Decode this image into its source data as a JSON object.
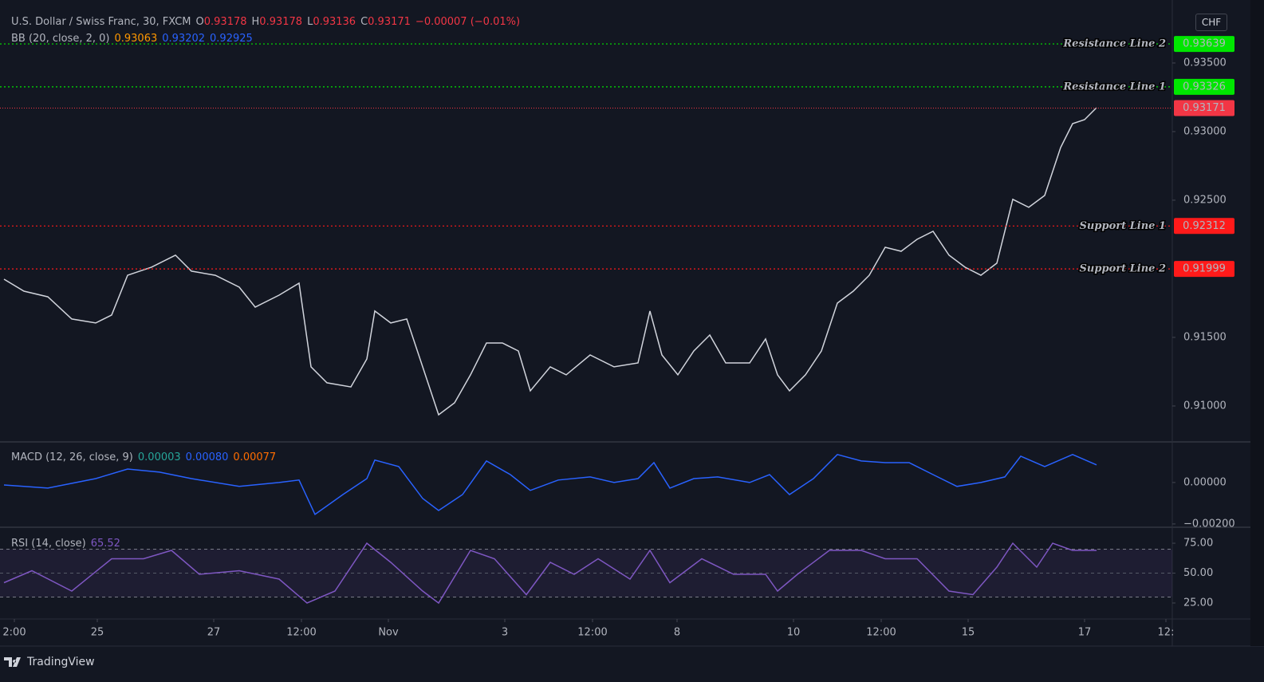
{
  "currency": "CHF",
  "footer": "TradingView",
  "chart_data": [
    {
      "type": "line",
      "title": "U.S. Dollar / Swiss Franc, 30, FXCM",
      "ohlc": [
        {
          "key": "O",
          "text": "0.93178"
        },
        {
          "key": "H",
          "text": "0.93178"
        },
        {
          "key": "L",
          "text": "0.93136"
        },
        {
          "key": "C",
          "text": "0.93171"
        }
      ],
      "change": "−0.00007 (−0.01%)",
      "indicator": "BB (20, close, 2, 0)",
      "indicator_values": [
        {
          "text": "0.93063",
          "color": "#ff9800"
        },
        {
          "text": "0.93202",
          "color": "#2962ff"
        },
        {
          "text": "0.92925",
          "color": "#2962ff"
        }
      ],
      "x": [
        5,
        30,
        60,
        90,
        120,
        140,
        160,
        190,
        220,
        240,
        270,
        300,
        320,
        350,
        375,
        390,
        410,
        440,
        460,
        470,
        490,
        510,
        530,
        550,
        570,
        590,
        610,
        630,
        650,
        665,
        690,
        710,
        740,
        770,
        800,
        815,
        830,
        850,
        870,
        890,
        910,
        940,
        960,
        975,
        990,
        1010,
        1030,
        1050,
        1070,
        1090,
        1110,
        1130,
        1150,
        1170,
        1190,
        1210,
        1230,
        1250,
        1270,
        1290,
        1310,
        1330,
        1345,
        1360,
        1375
      ],
      "series": [
        {
          "color": "#d1d4dc",
          "values": [
            0.91924,
            0.91837,
            0.91796,
            0.91634,
            0.91605,
            0.91663,
            0.91953,
            0.92012,
            0.92099,
            0.91983,
            0.91953,
            0.91866,
            0.91721,
            0.91808,
            0.91895,
            0.91285,
            0.91169,
            0.91139,
            0.91343,
            0.91692,
            0.91605,
            0.91634,
            0.91285,
            0.90936,
            0.91023,
            0.91227,
            0.91459,
            0.91459,
            0.91401,
            0.9111,
            0.91285,
            0.91227,
            0.91372,
            0.91285,
            0.91314,
            0.91692,
            0.91372,
            0.91227,
            0.91401,
            0.91517,
            0.91314,
            0.91314,
            0.91488,
            0.91227,
            0.9111,
            0.91227,
            0.91401,
            0.9175,
            0.91837,
            0.91953,
            0.92157,
            0.92128,
            0.92215,
            0.92273,
            0.92099,
            0.92012,
            0.91953,
            0.92041,
            0.92506,
            0.92448,
            0.92535,
            0.92884,
            0.93058,
            0.93087,
            0.93174
          ]
        }
      ],
      "xlim": [
        0,
        1470
      ],
      "xticks": [
        {
          "value": 18,
          "label": "2:00"
        },
        {
          "value": 122,
          "label": "25"
        },
        {
          "value": 268,
          "label": "27"
        },
        {
          "value": 378,
          "label": "12:00"
        },
        {
          "value": 487,
          "label": "Nov"
        },
        {
          "value": 633,
          "label": "3"
        },
        {
          "value": 743,
          "label": "12:00"
        },
        {
          "value": 849,
          "label": "8"
        },
        {
          "value": 995,
          "label": "10"
        },
        {
          "value": 1105,
          "label": "12:00"
        },
        {
          "value": 1214,
          "label": "15"
        },
        {
          "value": 1360,
          "label": "17"
        },
        {
          "value": 1462,
          "label": "12:"
        }
      ],
      "ylim": [
        0.90744,
        0.93901
      ],
      "yticks": [
        {
          "value": 0.935,
          "label": "0.93500"
        },
        {
          "value": 0.93,
          "label": "0.93000"
        },
        {
          "value": 0.925,
          "label": "0.92500"
        },
        {
          "value": 0.915,
          "label": "0.91500"
        },
        {
          "value": 0.91,
          "label": "0.91000"
        }
      ],
      "levels": [
        {
          "name": "Resistance Line 2",
          "value": 0.93639,
          "color": "#00e600"
        },
        {
          "name": "Resistance Line 1",
          "value": 0.93326,
          "color": "#00e600"
        },
        {
          "name": "Support Line 1",
          "value": 0.92312,
          "color": "#ff1a1a"
        },
        {
          "name": "Support Line 2",
          "value": 0.91999,
          "color": "#ff1a1a"
        }
      ],
      "last": {
        "value": 0.93171,
        "color": "#f23645"
      },
      "grid": false
    },
    {
      "type": "line",
      "title": "MACD (12, 26, close, 9)",
      "indicator_values": [
        {
          "text": "0.00003",
          "color": "#26a69a"
        },
        {
          "text": "0.00080",
          "color": "#2962ff"
        },
        {
          "text": "0.00077",
          "color": "#ff6d00"
        }
      ],
      "x": [
        5,
        60,
        120,
        160,
        200,
        240,
        300,
        350,
        375,
        395,
        430,
        460,
        470,
        500,
        530,
        550,
        580,
        610,
        640,
        665,
        700,
        740,
        770,
        800,
        820,
        840,
        870,
        900,
        940,
        965,
        990,
        1020,
        1050,
        1080,
        1110,
        1140,
        1170,
        1200,
        1230,
        1260,
        1280,
        1310,
        1345,
        1375
      ],
      "series": [
        {
          "color": "#2962ff",
          "values": [
            -0.00012,
            -0.00027,
            0.00019,
            0.00065,
            0.0005,
            0.00019,
            -0.00019,
            0,
            0.00012,
            -0.00154,
            -0.00058,
            0.00019,
            0.00108,
            0.00077,
            -0.00077,
            -0.00135,
            -0.00058,
            0.00104,
            0.00038,
            -0.00038,
            0.00012,
            0.00027,
            0,
            0.00019,
            0.00096,
            -0.00027,
            0.00019,
            0.00027,
            0,
            0.00038,
            -0.00058,
            0.00019,
            0.00135,
            0.00104,
            0.00096,
            0.00096,
            0.00038,
            -0.00019,
            0,
            0.00027,
            0.00127,
            0.00077,
            0.00135,
            0.00085
          ]
        }
      ],
      "xlim": [
        0,
        1470
      ],
      "ylim": [
        -0.00212,
        0.00192
      ],
      "yticks": [
        {
          "value": 0,
          "label": "0.00000"
        },
        {
          "value": -0.002,
          "label": "−0.00200"
        }
      ]
    },
    {
      "type": "line",
      "title": "RSI (14, close)",
      "indicator_values": [
        {
          "text": "65.52",
          "color": "#7e57c2"
        }
      ],
      "x": [
        5,
        40,
        90,
        140,
        180,
        215,
        250,
        300,
        350,
        385,
        420,
        460,
        490,
        530,
        550,
        590,
        620,
        660,
        690,
        720,
        750,
        790,
        815,
        840,
        880,
        920,
        960,
        975,
        1000,
        1040,
        1080,
        1110,
        1150,
        1190,
        1220,
        1250,
        1270,
        1300,
        1320,
        1345,
        1375
      ],
      "series": [
        {
          "color": "#7e57c2",
          "values": [
            42,
            52,
            35,
            62,
            62,
            69,
            49,
            52,
            45,
            25,
            35,
            75,
            59,
            35,
            25,
            69,
            62,
            32,
            59,
            49,
            62,
            45,
            69,
            42,
            62,
            49,
            49,
            35,
            49,
            69,
            69,
            62,
            62,
            35,
            32,
            55,
            75,
            55,
            75,
            69,
            69
          ]
        }
      ],
      "xlim": [
        0,
        1470
      ],
      "ylim": [
        12.3,
        87.7
      ],
      "yticks": [
        {
          "value": 75,
          "label": "75.00"
        },
        {
          "value": 50,
          "label": "50.00"
        },
        {
          "value": 25,
          "label": "25.00"
        }
      ],
      "band": [
        30,
        70
      ]
    }
  ]
}
